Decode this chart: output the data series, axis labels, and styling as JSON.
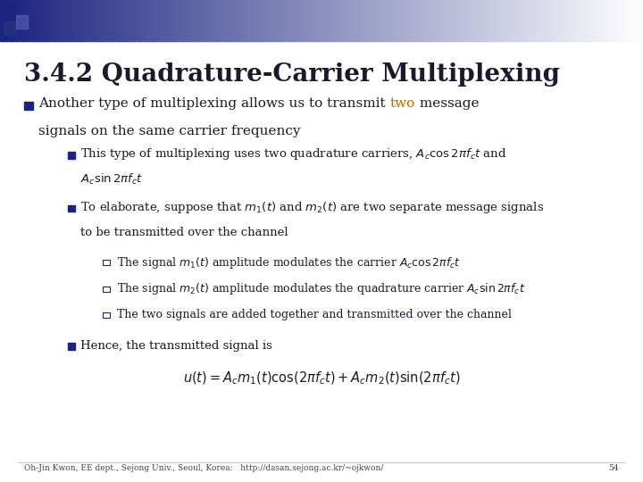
{
  "title": "3.4.2 Quadrature-Carrier Multiplexing",
  "bg_color": "#ffffff",
  "text_color": "#1a1a2e",
  "highlight_color": "#cc6600",
  "bullet_color": "#1a237e",
  "title_fontsize": 20,
  "font_size_main": 11,
  "font_size_sub": 9.5,
  "font_size_subsub": 9.0,
  "font_size_footer": 6.5,
  "footer": "Oh-Jin Kwon, EE dept., Sejong Univ., Seoul, Korea:   http://dasan.sejong.ac.kr/~ojkwon/",
  "page_number": "54"
}
